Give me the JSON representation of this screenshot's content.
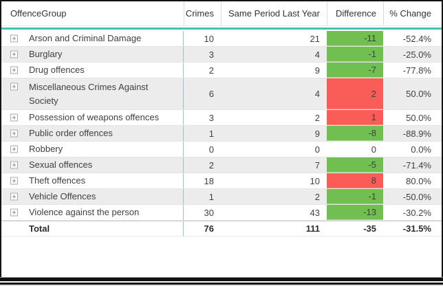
{
  "colors": {
    "accent": "#45C2B5",
    "divider_teal": "#7CD1C8",
    "band_gray": "#ececec",
    "row_border": "#e4e4e4",
    "positive_fill": "#FA5C57",
    "negative_fill": "#70BF50",
    "header_text": "#333333",
    "body_text": "#404040"
  },
  "table": {
    "columns": [
      {
        "label": "OffenceGroup"
      },
      {
        "label": "Crimes"
      },
      {
        "label": "Same Period Last Year"
      },
      {
        "label": "Difference"
      },
      {
        "label": "% Change"
      }
    ],
    "rows": [
      {
        "group": "Arson and Criminal Damage",
        "crimes": "10",
        "same_period_last_year": "21",
        "difference": "-11",
        "pct_change": "-52.4%",
        "diff_fill": "negative",
        "two_line": false
      },
      {
        "group": "Burglary",
        "crimes": "3",
        "same_period_last_year": "4",
        "difference": "-1",
        "pct_change": "-25.0%",
        "diff_fill": "negative",
        "two_line": false
      },
      {
        "group": "Drug offences",
        "crimes": "2",
        "same_period_last_year": "9",
        "difference": "-7",
        "pct_change": "-77.8%",
        "diff_fill": "negative",
        "two_line": false
      },
      {
        "group": "Miscellaneous Crimes Against Society",
        "crimes": "6",
        "same_period_last_year": "4",
        "difference": "2",
        "pct_change": "50.0%",
        "diff_fill": "positive",
        "two_line": true
      },
      {
        "group": "Possession of weapons offences",
        "crimes": "3",
        "same_period_last_year": "2",
        "difference": "1",
        "pct_change": "50.0%",
        "diff_fill": "positive",
        "two_line": false
      },
      {
        "group": "Public order offences",
        "crimes": "1",
        "same_period_last_year": "9",
        "difference": "-8",
        "pct_change": "-88.9%",
        "diff_fill": "negative",
        "two_line": false
      },
      {
        "group": "Robbery",
        "crimes": "0",
        "same_period_last_year": "0",
        "difference": "0",
        "pct_change": "0.0%",
        "diff_fill": "none",
        "two_line": false
      },
      {
        "group": "Sexual offences",
        "crimes": "2",
        "same_period_last_year": "7",
        "difference": "-5",
        "pct_change": "-71.4%",
        "diff_fill": "negative",
        "two_line": false
      },
      {
        "group": "Theft offences",
        "crimes": "18",
        "same_period_last_year": "10",
        "difference": "8",
        "pct_change": "80.0%",
        "diff_fill": "positive",
        "two_line": false
      },
      {
        "group": "Vehicle Offences",
        "crimes": "1",
        "same_period_last_year": "2",
        "difference": "-1",
        "pct_change": "-50.0%",
        "diff_fill": "negative",
        "two_line": false
      },
      {
        "group": "Violence against the person",
        "crimes": "30",
        "same_period_last_year": "43",
        "difference": "-13",
        "pct_change": "-30.2%",
        "diff_fill": "negative",
        "two_line": false
      }
    ],
    "total_row": {
      "label": "Total",
      "crimes": "76",
      "same_period_last_year": "111",
      "difference": "-35",
      "pct_change": "-31.5%",
      "diff_fill": "none"
    }
  }
}
